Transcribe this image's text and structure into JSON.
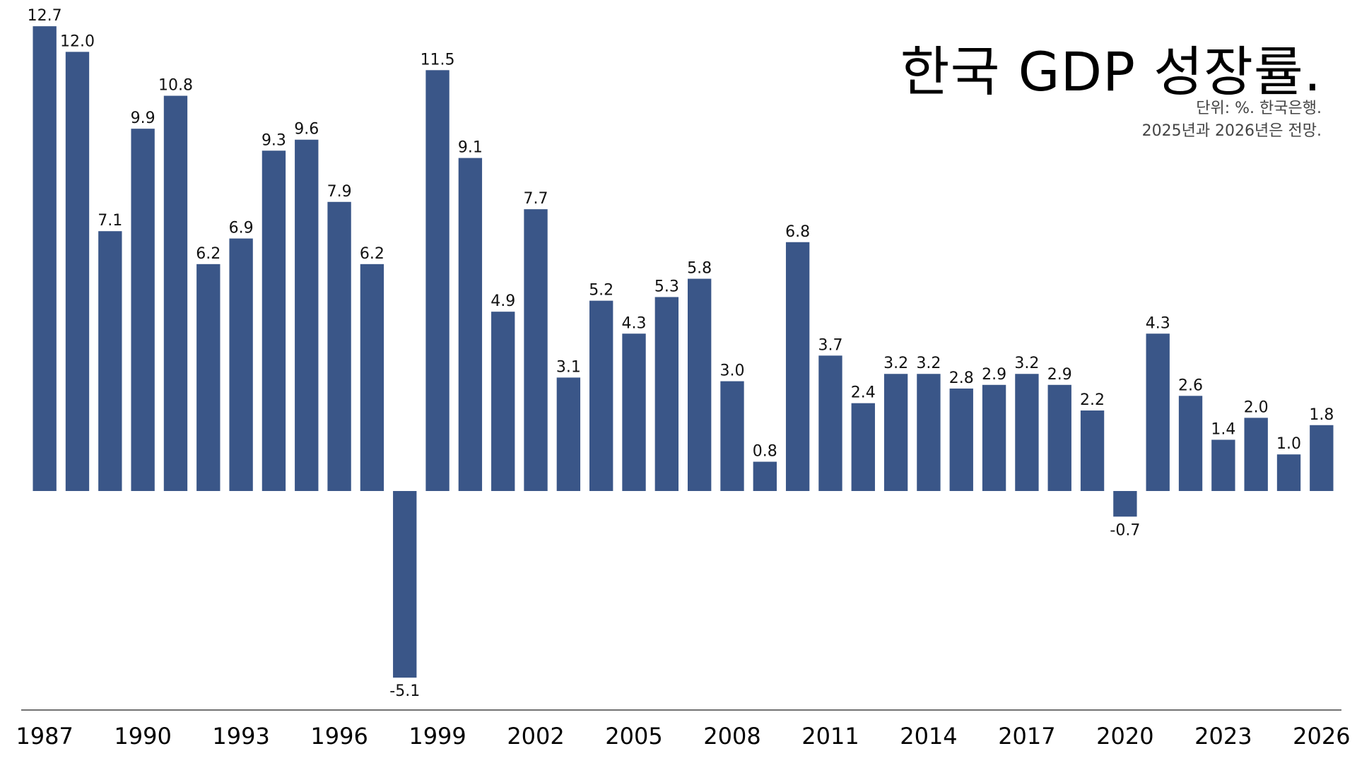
{
  "chart_data": {
    "type": "bar",
    "title": "한국 GDP 성장률.",
    "notes": [
      "단위: %. 한국은행.",
      "2025년과 2026년은 전망."
    ],
    "unit": "%",
    "color": "#3a5688",
    "categories": [
      "1987",
      "1988",
      "1989",
      "1990",
      "1991",
      "1992",
      "1993",
      "1994",
      "1995",
      "1996",
      "1997",
      "1998",
      "1999",
      "2000",
      "2001",
      "2002",
      "2003",
      "2004",
      "2005",
      "2006",
      "2007",
      "2008",
      "2009",
      "2010",
      "2011",
      "2012",
      "2013",
      "2014",
      "2015",
      "2016",
      "2017",
      "2018",
      "2019",
      "2020",
      "2021",
      "2022",
      "2023",
      "2024",
      "2025",
      "2026"
    ],
    "values": [
      12.7,
      12.0,
      7.1,
      9.9,
      10.8,
      6.2,
      6.9,
      9.3,
      9.6,
      7.9,
      6.2,
      -5.1,
      11.5,
      9.1,
      4.9,
      7.7,
      3.1,
      5.2,
      4.3,
      5.3,
      5.8,
      3.0,
      0.8,
      6.8,
      3.7,
      2.4,
      3.2,
      3.2,
      2.8,
      2.9,
      3.2,
      2.9,
      2.2,
      -0.7,
      4.3,
      2.6,
      1.4,
      2.0,
      1.0,
      1.8
    ],
    "value_labels": [
      "12.7",
      "12.0",
      "7.1",
      "9.9",
      "10.8",
      "6.2",
      "6.9",
      "9.3",
      "9.6",
      "7.9",
      "6.2",
      "-5.1",
      "11.5",
      "9.1",
      "4.9",
      "7.7",
      "3.1",
      "5.2",
      "4.3",
      "5.3",
      "5.8",
      "3.0",
      "0.8",
      "6.8",
      "3.7",
      "2.4",
      "3.2",
      "3.2",
      "2.8",
      "2.9",
      "3.2",
      "2.9",
      "2.2",
      "-0.7",
      "4.3",
      "2.6",
      "1.4",
      "2.0",
      "1.0",
      "1.8"
    ],
    "x_tick_labels": [
      "1987",
      "1990",
      "1993",
      "1996",
      "1999",
      "2002",
      "2005",
      "2008",
      "2011",
      "2014",
      "2017",
      "2020",
      "2023",
      "2026"
    ],
    "ylim": [
      -6,
      12.7
    ],
    "grid": false,
    "legend": "none"
  }
}
